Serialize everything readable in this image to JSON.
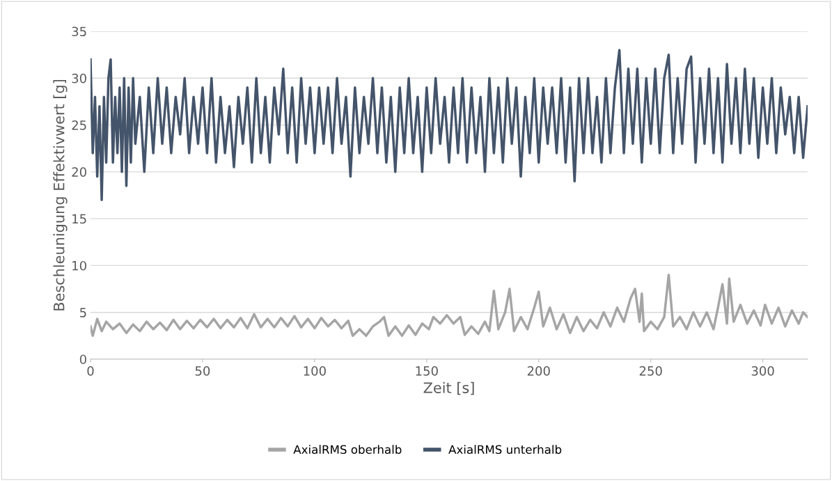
{
  "chart_data": {
    "type": "line",
    "xlabel": "Zeit [s]",
    "ylabel": "Beschleunigung Effektivwert [g]",
    "xlim": [
      0,
      320
    ],
    "xticks": [
      0,
      50,
      100,
      150,
      200,
      250,
      300
    ],
    "ylim": [
      0,
      35
    ],
    "yticks": [
      0,
      5,
      10,
      15,
      20,
      25,
      30,
      35
    ],
    "grid": "y",
    "legend": "bottom",
    "marker": "none",
    "line_style": "solid",
    "series": [
      {
        "name": "AxialRMS oberhalb",
        "color": "#a5a5a5",
        "x": [
          0,
          1,
          3,
          5,
          7,
          10,
          13,
          16,
          19,
          22,
          25,
          28,
          31,
          34,
          37,
          40,
          43,
          46,
          49,
          52,
          55,
          58,
          61,
          64,
          67,
          70,
          73,
          76,
          79,
          82,
          85,
          88,
          91,
          94,
          97,
          100,
          103,
          106,
          109,
          112,
          115,
          117,
          120,
          123,
          126,
          129,
          131,
          133,
          136,
          139,
          142,
          145,
          148,
          151,
          153,
          156,
          159,
          162,
          165,
          167,
          170,
          173,
          176,
          178,
          180,
          182,
          185,
          187,
          189,
          192,
          195,
          198,
          200,
          202,
          205,
          208,
          211,
          214,
          217,
          220,
          223,
          226,
          229,
          232,
          235,
          238,
          241,
          243,
          245,
          246,
          247,
          250,
          253,
          256,
          258,
          260,
          263,
          266,
          269,
          272,
          275,
          278,
          280,
          282,
          284,
          285,
          287,
          290,
          293,
          296,
          299,
          301,
          304,
          307,
          310,
          313,
          316,
          318,
          320
        ],
        "values": [
          3.5,
          2.5,
          4.3,
          3,
          4,
          3.2,
          3.8,
          2.8,
          3.7,
          3,
          4,
          3.2,
          3.9,
          3.1,
          4.2,
          3.2,
          4.1,
          3.3,
          4.2,
          3.4,
          4.3,
          3.3,
          4.2,
          3.4,
          4.4,
          3.3,
          4.8,
          3.4,
          4.3,
          3.4,
          4.4,
          3.5,
          4.6,
          3.4,
          4.3,
          3.3,
          4.4,
          3.5,
          4.2,
          3.3,
          4.1,
          2.5,
          3.2,
          2.5,
          3.5,
          4,
          4.5,
          2.5,
          3.5,
          2.5,
          3.6,
          2.6,
          3.8,
          3.2,
          4.5,
          3.8,
          4.7,
          3.8,
          4.5,
          2.6,
          3.5,
          2.7,
          4,
          3,
          7.3,
          3.2,
          5,
          7.5,
          3,
          4.5,
          3.2,
          5.5,
          7.2,
          3.5,
          5.5,
          3.2,
          4.8,
          2.8,
          4.5,
          3,
          4.2,
          3.3,
          5,
          3.5,
          5.5,
          4,
          6.5,
          7.5,
          4,
          7,
          3,
          4,
          3.2,
          4.5,
          9,
          3.5,
          4.5,
          3.2,
          5,
          3.5,
          5,
          3.2,
          5.5,
          8,
          3.8,
          8.6,
          4,
          5.8,
          3.8,
          5.2,
          3.6,
          5.8,
          3.8,
          5.5,
          3.5,
          5.2,
          3.8,
          5,
          4.5
        ]
      },
      {
        "name": "AxialRMS unterhalb",
        "color": "#44546a",
        "x": [
          0,
          1,
          2,
          3,
          4,
          5,
          6,
          7,
          8,
          9,
          10,
          11,
          12,
          13,
          14,
          15,
          16,
          17,
          18,
          19,
          20,
          22,
          24,
          26,
          28,
          30,
          32,
          34,
          36,
          38,
          40,
          42,
          44,
          46,
          48,
          50,
          52,
          54,
          56,
          58,
          60,
          62,
          64,
          66,
          68,
          70,
          72,
          74,
          76,
          78,
          80,
          82,
          84,
          86,
          88,
          90,
          92,
          94,
          96,
          98,
          100,
          102,
          104,
          106,
          108,
          110,
          112,
          114,
          116,
          118,
          120,
          122,
          124,
          126,
          128,
          130,
          132,
          134,
          136,
          138,
          140,
          142,
          144,
          146,
          148,
          150,
          152,
          154,
          156,
          158,
          160,
          162,
          164,
          166,
          168,
          170,
          172,
          174,
          176,
          178,
          180,
          182,
          184,
          186,
          188,
          190,
          192,
          194,
          196,
          198,
          200,
          202,
          204,
          206,
          208,
          210,
          212,
          214,
          216,
          218,
          220,
          222,
          224,
          226,
          228,
          230,
          232,
          234,
          236,
          238,
          240,
          242,
          244,
          246,
          248,
          250,
          252,
          254,
          256,
          258,
          260,
          262,
          264,
          266,
          268,
          270,
          272,
          274,
          276,
          278,
          280,
          282,
          284,
          286,
          288,
          290,
          292,
          294,
          296,
          298,
          300,
          302,
          304,
          306,
          308,
          310,
          312,
          314,
          316,
          318,
          320
        ],
        "values": [
          32,
          22,
          28,
          19.5,
          27,
          17,
          28,
          21,
          30,
          32,
          21,
          28,
          22,
          29,
          20,
          30,
          18.5,
          29,
          21,
          30,
          23,
          28,
          20,
          29,
          22,
          30,
          23,
          29,
          22,
          28,
          24,
          30,
          22,
          28,
          23,
          29,
          22,
          30,
          21,
          28,
          22,
          27,
          20.5,
          28,
          23,
          29,
          21,
          30,
          22,
          28,
          21,
          29,
          24,
          31,
          22,
          29,
          21,
          30,
          23,
          29,
          22,
          29,
          23,
          29,
          22,
          30,
          23,
          28,
          19.5,
          29,
          22,
          28,
          23,
          30,
          22,
          29,
          21,
          28,
          20,
          29,
          22,
          30,
          22,
          28,
          20,
          29,
          22,
          30,
          23,
          28,
          21,
          29,
          22,
          30,
          21,
          29,
          22,
          28,
          20,
          30,
          22,
          29,
          21,
          30,
          23,
          29,
          19.5,
          28,
          22,
          30,
          21,
          29,
          23,
          29,
          22,
          30,
          21,
          29,
          19,
          30,
          22,
          30,
          22,
          28,
          21,
          30,
          22,
          29,
          33,
          22,
          31,
          23,
          31,
          21,
          30,
          23,
          31,
          22,
          30,
          32.5,
          22,
          30,
          23,
          31,
          32.3,
          21,
          30,
          23,
          31,
          22,
          30,
          21,
          31.5,
          23,
          30,
          22,
          31,
          23,
          30,
          21.5,
          29,
          23,
          30,
          22,
          29,
          24,
          28,
          22,
          28,
          21.5,
          27
        ]
      }
    ]
  }
}
